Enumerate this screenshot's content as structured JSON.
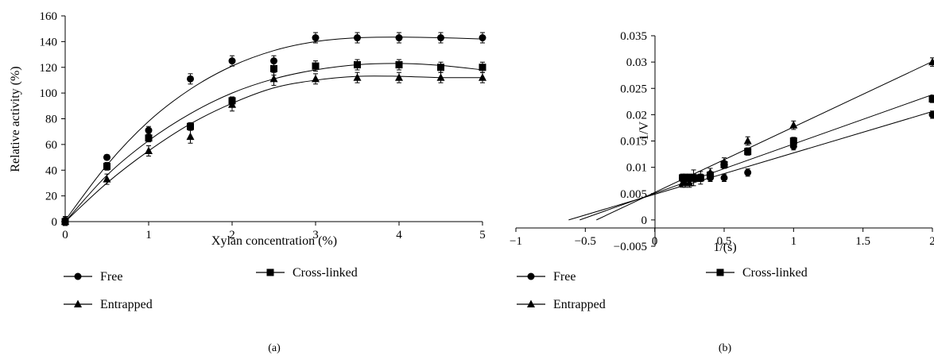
{
  "chart_data": [
    {
      "type": "scatter",
      "panel_label": "(a)",
      "xlabel": "Xylan concentration (%)",
      "ylabel": "Relative activity (%)",
      "xlim": [
        0,
        5
      ],
      "ylim": [
        0,
        160
      ],
      "x_ticks": [
        0,
        1,
        2,
        3,
        4,
        5
      ],
      "y_ticks": [
        0,
        20,
        40,
        60,
        80,
        100,
        120,
        140,
        160
      ],
      "x_tick_labels": [
        "0",
        "1",
        "2",
        "3",
        "4",
        "5"
      ],
      "y_tick_labels": [
        "0",
        "20",
        "40",
        "60",
        "80",
        "100",
        "120",
        "140",
        "160"
      ],
      "grid": false,
      "legend_position": "bottom",
      "series": [
        {
          "name": "Free",
          "marker": "circle",
          "x": [
            0,
            0.5,
            1,
            1.5,
            2,
            2.5,
            3,
            3.5,
            4,
            4.5,
            5
          ],
          "y": [
            1,
            50,
            71,
            111,
            125,
            125,
            143,
            143,
            143,
            143,
            143
          ],
          "err": [
            3,
            2,
            3,
            4,
            4,
            4,
            4,
            4,
            4,
            4,
            4
          ],
          "fit": [
            [
              0,
              1
            ],
            [
              0.5,
              44
            ],
            [
              1,
              78
            ],
            [
              1.5,
              103
            ],
            [
              2,
              121
            ],
            [
              2.5,
              133
            ],
            [
              3,
              140
            ],
            [
              3.5,
              143
            ],
            [
              4,
              143.5
            ],
            [
              4.5,
              143
            ],
            [
              5,
              142
            ]
          ]
        },
        {
          "name": "Cross-linked",
          "marker": "square",
          "x": [
            0,
            0.5,
            1,
            1.5,
            2,
            2.5,
            3,
            3.5,
            4,
            4.5,
            5
          ],
          "y": [
            0,
            43,
            65,
            74,
            94,
            119,
            121,
            122,
            122,
            120,
            120
          ],
          "err": [
            3,
            3,
            3,
            3,
            3,
            5,
            4,
            4,
            4,
            4,
            4
          ],
          "fit": [
            [
              0,
              0
            ],
            [
              0.5,
              36
            ],
            [
              1,
              63
            ],
            [
              1.5,
              84
            ],
            [
              2,
              100
            ],
            [
              2.5,
              111
            ],
            [
              3,
              118
            ],
            [
              3.5,
              122
            ],
            [
              4,
              123
            ],
            [
              4.5,
              121.5
            ],
            [
              5,
              118
            ]
          ]
        },
        {
          "name": "Entrapped",
          "marker": "triangle",
          "x": [
            0,
            0.5,
            1,
            1.5,
            2,
            2.5,
            3,
            3.5,
            4,
            4.5,
            5
          ],
          "y": [
            0,
            33,
            55,
            66,
            91,
            111,
            111,
            112,
            112,
            112,
            112
          ],
          "err": [
            3,
            4,
            4,
            5,
            5,
            5,
            4,
            4,
            4,
            4,
            4
          ],
          "fit": [
            [
              0,
              0
            ],
            [
              0.5,
              30
            ],
            [
              1,
              55
            ],
            [
              1.5,
              76
            ],
            [
              2,
              92
            ],
            [
              2.5,
              104
            ],
            [
              3,
              110
            ],
            [
              3.5,
              113
            ],
            [
              4,
              113
            ],
            [
              4.5,
              112
            ],
            [
              5,
              112
            ]
          ]
        }
      ]
    },
    {
      "type": "scatter",
      "panel_label": "(b)",
      "xlabel": "1/(s)",
      "ylabel": "1/V",
      "xlim": [
        -1,
        2
      ],
      "ylim": [
        -0.005,
        0.035
      ],
      "x_ticks": [
        -1,
        -0.5,
        0,
        0.5,
        1,
        1.5,
        2
      ],
      "y_ticks": [
        -0.005,
        0,
        0.005,
        0.01,
        0.015,
        0.02,
        0.025,
        0.03,
        0.035
      ],
      "x_tick_labels": [
        "−1",
        "−0.5",
        "0",
        "0.5",
        "1",
        "1.5",
        "2"
      ],
      "y_tick_labels": [
        "−0.005",
        "0",
        "0.005",
        "0.01",
        "0.015",
        "0.02",
        "0.025",
        "0.03",
        "0.035"
      ],
      "grid": false,
      "legend_position": "bottom",
      "series": [
        {
          "name": "Free",
          "marker": "circle",
          "x": [
            0.2,
            0.22,
            0.25,
            0.28,
            0.33,
            0.4,
            0.5,
            0.67,
            1,
            2
          ],
          "y": [
            0.008,
            0.008,
            0.008,
            0.008,
            0.008,
            0.008,
            0.008,
            0.009,
            0.014,
            0.02
          ],
          "err": [
            0.0007,
            0.0007,
            0.0007,
            0.0007,
            0.0007,
            0.0007,
            0.0007,
            0.0007,
            0.0007,
            0.0007
          ],
          "fit": [
            [
              -0.62,
              0
            ],
            [
              2,
              0.0206
            ]
          ]
        },
        {
          "name": "Cross-linked",
          "marker": "square",
          "x": [
            0.2,
            0.22,
            0.25,
            0.28,
            0.33,
            0.4,
            0.5,
            0.67,
            1,
            2
          ],
          "y": [
            0.008,
            0.008,
            0.008,
            0.008,
            0.008,
            0.0085,
            0.0105,
            0.013,
            0.015,
            0.023
          ],
          "err": [
            0.0007,
            0.0007,
            0.0007,
            0.0007,
            0.0007,
            0.0007,
            0.0007,
            0.0007,
            0.0007,
            0.0007
          ],
          "fit": [
            [
              -0.54,
              0
            ],
            [
              2,
              0.0238
            ]
          ]
        },
        {
          "name": "Entrapped",
          "marker": "triangle",
          "x": [
            0.2,
            0.22,
            0.25,
            0.28,
            0.33,
            0.4,
            0.5,
            0.67,
            1,
            2
          ],
          "y": [
            0.007,
            0.007,
            0.007,
            0.008,
            0.008,
            0.009,
            0.011,
            0.015,
            0.018,
            0.03
          ],
          "err": [
            0.0008,
            0.0008,
            0.0008,
            0.0015,
            0.0012,
            0.0008,
            0.0008,
            0.0008,
            0.0008,
            0.0008
          ],
          "fit": [
            [
              -0.42,
              0
            ],
            [
              2,
              0.0301
            ]
          ]
        }
      ]
    }
  ]
}
